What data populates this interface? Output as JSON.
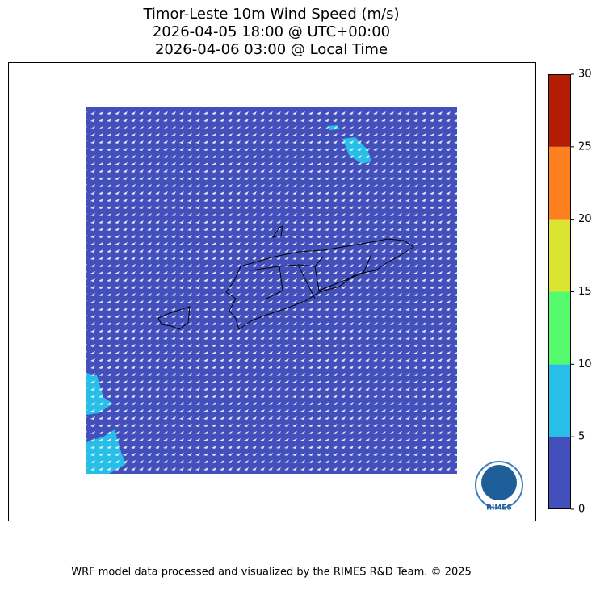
{
  "title": [
    "Timor-Leste 10m Wind Speed (m/s)",
    "2026-04-05 18:00 @ UTC+00:00",
    "2026-04-06 03:00 @ Local Time"
  ],
  "colorbar": {
    "lim": [
      0,
      30
    ],
    "ticks": [
      0,
      5,
      10,
      15,
      20,
      25,
      30
    ],
    "colors": [
      "#434fbb",
      "#27bee8",
      "#55fb6c",
      "#dce432",
      "#fc7f20",
      "#b41d04"
    ]
  },
  "logo": "RIMES",
  "footer": "WRF model data processed and visualized by the RIMES R&D Team. © 2025"
}
